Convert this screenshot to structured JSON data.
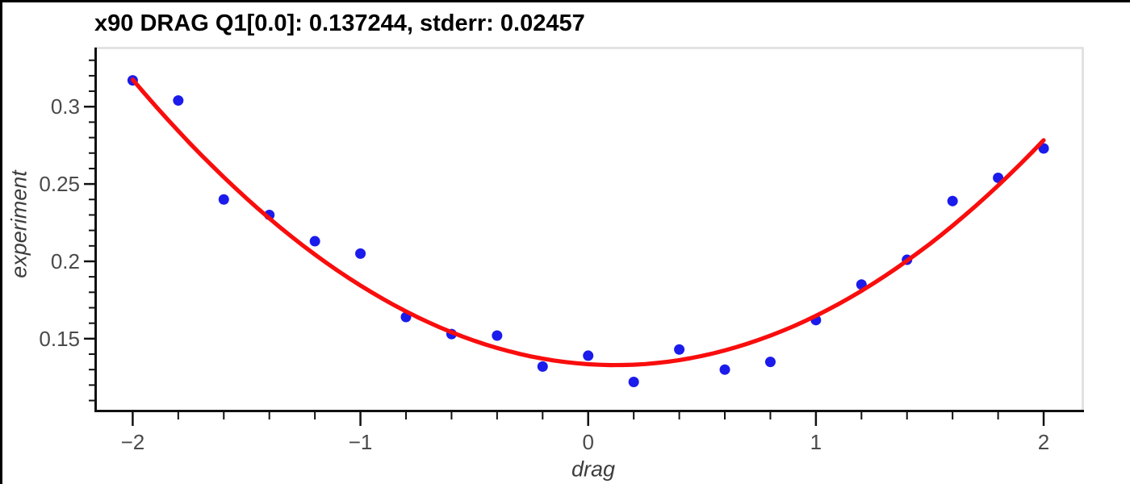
{
  "figure": {
    "title": "x90 DRAG Q1[0.0]: 0.137244, stderr: 0.02457"
  },
  "chart_data": {
    "type": "scatter",
    "title": "x90 DRAG Q1[0.0]: 0.137244, stderr: 0.02457",
    "xlabel": "drag",
    "ylabel": "experiment",
    "xlim": [
      -2.168,
      2.17
    ],
    "ylim": [
      0.1035,
      0.3382
    ],
    "x_major_ticks": [
      -2,
      -1,
      0,
      1,
      2
    ],
    "x_major_labels": [
      "−2",
      "−1",
      "0",
      "1",
      "2"
    ],
    "x_minor_step": 0.2,
    "y_major_ticks": [
      0.15,
      0.2,
      0.25,
      0.3
    ],
    "y_major_labels": [
      "0.15",
      "0.2",
      "0.25",
      "0.3"
    ],
    "y_minor_step": 0.01,
    "y_minor_range": [
      0.11,
      0.33
    ],
    "grid": false,
    "legend_position": "none",
    "series": [
      {
        "name": "experiment data points",
        "type": "scatter",
        "color": "#1b1bec",
        "x": [
          -2.0,
          -1.8,
          -1.6,
          -1.4,
          -1.2,
          -1.0,
          -0.8,
          -0.6,
          -0.4,
          -0.2,
          0.0,
          0.2,
          0.4,
          0.6,
          0.8,
          1.0,
          1.2,
          1.4,
          1.6,
          1.8,
          2.0
        ],
        "y": [
          0.317,
          0.304,
          0.24,
          0.23,
          0.213,
          0.205,
          0.164,
          0.153,
          0.152,
          0.132,
          0.139,
          0.122,
          0.143,
          0.13,
          0.135,
          0.162,
          0.185,
          0.201,
          0.239,
          0.254,
          0.273
        ]
      },
      {
        "name": "quadratic fit curve",
        "type": "line",
        "color": "#f90d0d",
        "x_range": [
          -2.0,
          2.0
        ],
        "fit": {
          "form": "quadratic",
          "a": 0.0411,
          "b": -0.0098,
          "c": 0.1335
        }
      }
    ],
    "colors": {
      "point": "#1b1bec",
      "fit_line": "#f90d0d",
      "tick_label": "#4a4a4a",
      "axis_label": "#3d3d3d",
      "spine": "#111111",
      "frame": "#e2e2e2",
      "title": "#000000"
    }
  }
}
